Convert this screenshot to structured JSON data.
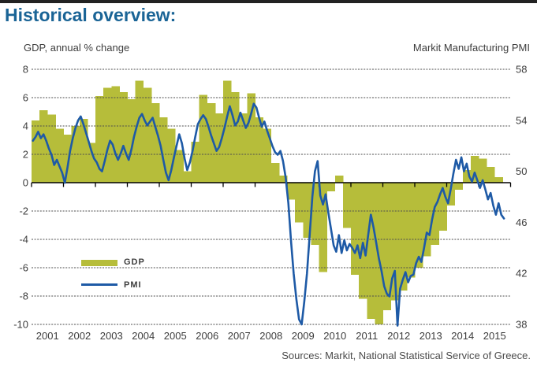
{
  "window": {
    "title": "Historical overview:"
  },
  "header": {
    "left_axis_title": "GDP, annual % change",
    "right_axis_title": "Markit Manufacturing PMI"
  },
  "legend": {
    "gdp_label": "GDP",
    "pmi_label": "PMI"
  },
  "footer": {
    "sources": "Sources: Markit, National Statistical Service of Greece."
  },
  "colors": {
    "title_blue": "#1a6496",
    "gdp_olive": "#b6bd3a",
    "pmi_blue": "#1e5aa6",
    "grid_gray": "#4d4d4d",
    "axis_black": "#000000",
    "text_dark": "#3d3d3d"
  },
  "chart_data": {
    "type": "combo",
    "title": "Historical overview:",
    "grid": "horizontal-dotted",
    "legend_position": "inside-left",
    "x_axis": {
      "start_year": 2001,
      "end_year": 2016,
      "tick_labels": [
        "2001",
        "2002",
        "2003",
        "2004",
        "2005",
        "2006",
        "2007",
        "2008",
        "2009",
        "2010",
        "2011",
        "2012",
        "2013",
        "2014",
        "2015"
      ]
    },
    "left_axis": {
      "label": "GDP, annual % change",
      "range": [
        -10,
        8
      ],
      "gridline_values": [
        8,
        6,
        4,
        2,
        0,
        -2,
        -4,
        -6,
        -8,
        -10
      ],
      "tick_labels": [
        "8",
        "6",
        "4",
        "2",
        "0",
        "-2",
        "-4",
        "-6",
        "-8",
        "-10"
      ]
    },
    "right_axis": {
      "label": "Markit Manufacturing PMI",
      "range": [
        38,
        58
      ],
      "tick_values": [
        58,
        54,
        50,
        46,
        42,
        38
      ],
      "tick_labels": [
        "58",
        "54",
        "50",
        "46",
        "42",
        "38"
      ]
    },
    "series": [
      {
        "name": "GDP",
        "chart_type": "bar",
        "axis": "left",
        "frequency": "quarterly",
        "start": "2001-Q1",
        "end": "2015-Q3",
        "color": "#b6bd3a",
        "values": [
          4.4,
          5.1,
          4.8,
          3.8,
          3.4,
          4.0,
          4.5,
          2.8,
          6.1,
          6.7,
          6.8,
          6.4,
          5.9,
          7.2,
          6.7,
          5.6,
          4.6,
          3.8,
          2.3,
          0.8,
          2.9,
          6.2,
          5.6,
          4.9,
          7.2,
          6.4,
          4.9,
          6.3,
          4.6,
          3.8,
          1.4,
          0.5,
          -1.2,
          -2.8,
          -3.9,
          -4.4,
          -6.3,
          -0.6,
          0.5,
          -3.2,
          -6.5,
          -8.2,
          -9.6,
          -10.0,
          -9.0,
          -8.3,
          -7.6,
          -6.7,
          -6.0,
          -5.2,
          -4.4,
          -3.4,
          -1.6,
          -0.5,
          0.9,
          1.9,
          1.7,
          1.1,
          0.4
        ]
      },
      {
        "name": "PMI",
        "chart_type": "line",
        "axis": "right",
        "frequency": "monthly",
        "start": "2001-01",
        "end": "2015-10",
        "color": "#1e5aa6",
        "values": [
          52.4,
          52.7,
          53.1,
          52.6,
          52.9,
          52.4,
          51.8,
          51.3,
          50.5,
          50.9,
          50.4,
          49.9,
          49.1,
          50.3,
          51.6,
          52.6,
          53.4,
          54.0,
          54.3,
          53.7,
          53.0,
          52.3,
          51.6,
          51.0,
          50.7,
          50.2,
          50.0,
          50.8,
          51.7,
          52.4,
          52.1,
          51.4,
          50.9,
          51.4,
          52.0,
          51.4,
          50.9,
          51.7,
          52.7,
          53.5,
          54.2,
          54.5,
          54.0,
          53.6,
          53.9,
          54.2,
          53.5,
          52.8,
          52.0,
          50.9,
          49.9,
          49.3,
          50.1,
          51.1,
          52.0,
          52.9,
          52.2,
          51.0,
          50.1,
          50.7,
          51.6,
          52.7,
          53.7,
          54.1,
          54.4,
          54.1,
          53.5,
          52.8,
          52.2,
          51.6,
          51.9,
          52.6,
          53.4,
          54.3,
          55.1,
          54.4,
          53.6,
          53.9,
          54.6,
          54.0,
          53.4,
          53.8,
          54.5,
          55.3,
          55.0,
          54.2,
          53.5,
          53.9,
          53.2,
          52.6,
          52.0,
          51.5,
          51.3,
          51.6,
          50.8,
          49.5,
          47.5,
          44.5,
          42.0,
          40.0,
          38.4,
          38.0,
          39.8,
          42.0,
          45.0,
          48.0,
          50.0,
          50.8,
          48.1,
          47.4,
          48.2,
          46.8,
          45.5,
          44.2,
          43.7,
          45.0,
          43.6,
          44.6,
          43.8,
          44.3,
          44.0,
          43.6,
          44.2,
          43.2,
          44.4,
          43.4,
          45.0,
          46.6,
          45.6,
          44.4,
          43.2,
          42.2,
          41.0,
          40.4,
          40.2,
          41.6,
          42.2,
          37.9,
          40.8,
          41.5,
          42.1,
          41.3,
          41.8,
          41.9,
          42.8,
          43.3,
          42.9,
          44.0,
          45.2,
          45.0,
          46.2,
          47.2,
          47.6,
          48.2,
          48.7,
          48.0,
          47.5,
          48.6,
          49.8,
          50.9,
          50.2,
          51.1,
          50.0,
          50.6,
          49.6,
          49.2,
          49.9,
          49.3,
          48.7,
          49.3,
          48.6,
          47.8,
          48.3,
          47.3,
          46.6,
          47.5,
          46.6,
          46.3
        ]
      }
    ]
  }
}
